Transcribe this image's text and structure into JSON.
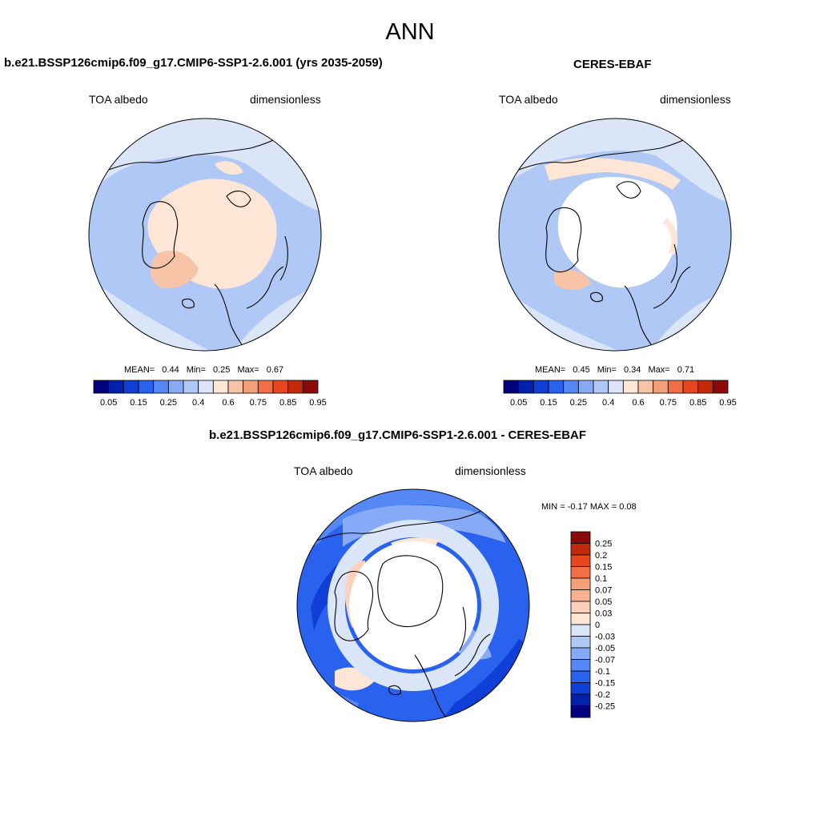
{
  "main_title": "ANN",
  "panels": {
    "model": {
      "title": "b.e21.BSSP126cmip6.f09_g17.CMIP6-SSP1-2.6.001 (yrs 2035-2059)",
      "left_label": "TOA albedo",
      "right_label": "dimensionless",
      "mean_label": "MEAN=",
      "mean_value": "0.44",
      "min_label": "Min=",
      "min_value": "0.25",
      "max_label": "Max=",
      "max_value": "0.67"
    },
    "obs": {
      "title": "CERES-EBAF",
      "left_label": "TOA albedo",
      "right_label": "dimensionless",
      "mean_label": "MEAN=",
      "mean_value": "0.45",
      "min_label": "Min=",
      "min_value": "0.34",
      "max_label": "Max=",
      "max_value": "0.71"
    },
    "diff": {
      "title": "b.e21.BSSP126cmip6.f09_g17.CMIP6-SSP1-2.6.001 - CERES-EBAF",
      "left_label": "TOA albedo",
      "right_label": "dimensionless",
      "minmax_text": "MIN =  -0.17 MAX =   0.08"
    }
  },
  "chart_data": [
    {
      "type": "heatmap",
      "projection": "north polar stereographic",
      "panel": "model",
      "colorbar": {
        "orientation": "horizontal",
        "levels": [
          "0.05",
          "0.1",
          "0.15",
          "0.2",
          "0.25",
          "0.3",
          "0.4",
          "0.5",
          "0.6",
          "0.7",
          "0.75",
          "0.8",
          "0.85",
          "0.9",
          "0.95"
        ],
        "tick_labels": [
          "0.05",
          "0.15",
          "0.25",
          "0.4",
          "0.6",
          "0.75",
          "0.85",
          "0.95"
        ],
        "colors": [
          "#00007f",
          "#0022aa",
          "#0f3fd6",
          "#2a62f0",
          "#5588f5",
          "#86aaf5",
          "#b0c8f5",
          "#dae6f7",
          "#fde6d6",
          "#f7c4a8",
          "#f59f78",
          "#f26f45",
          "#e8461f",
          "#c22a0a",
          "#8a0a0a"
        ]
      },
      "stats": {
        "mean": 0.44,
        "min": 0.25,
        "max": 0.67
      }
    },
    {
      "type": "heatmap",
      "projection": "north polar stereographic",
      "panel": "obs",
      "colorbar": {
        "orientation": "horizontal",
        "levels": [
          "0.05",
          "0.1",
          "0.15",
          "0.2",
          "0.25",
          "0.3",
          "0.4",
          "0.5",
          "0.6",
          "0.7",
          "0.75",
          "0.8",
          "0.85",
          "0.9",
          "0.95"
        ],
        "tick_labels": [
          "0.05",
          "0.15",
          "0.25",
          "0.4",
          "0.6",
          "0.75",
          "0.85",
          "0.95"
        ],
        "colors": [
          "#00007f",
          "#0022aa",
          "#0f3fd6",
          "#2a62f0",
          "#5588f5",
          "#86aaf5",
          "#b0c8f5",
          "#dae6f7",
          "#fde6d6",
          "#f7c4a8",
          "#f59f78",
          "#f26f45",
          "#e8461f",
          "#c22a0a",
          "#8a0a0a"
        ]
      },
      "stats": {
        "mean": 0.45,
        "min": 0.34,
        "max": 0.71
      }
    },
    {
      "type": "heatmap",
      "projection": "north polar stereographic",
      "panel": "diff",
      "colorbar": {
        "orientation": "vertical",
        "tick_labels": [
          "0.25",
          "0.2",
          "0.15",
          "0.1",
          "0.07",
          "0.05",
          "0.03",
          "0",
          "-0.03",
          "-0.05",
          "-0.07",
          "-0.1",
          "-0.15",
          "-0.2",
          "-0.25"
        ],
        "colors": [
          "#8a0a0a",
          "#c22a0a",
          "#e8461f",
          "#f26f45",
          "#f59f78",
          "#f7b090",
          "#fbd1bb",
          "#fde6d6",
          "#dae6f7",
          "#b0c8f5",
          "#86aaf5",
          "#5588f5",
          "#2a62f0",
          "#0f3fd6",
          "#0022aa",
          "#00007f"
        ]
      },
      "stats": {
        "min": -0.17,
        "max": 0.08
      }
    }
  ]
}
